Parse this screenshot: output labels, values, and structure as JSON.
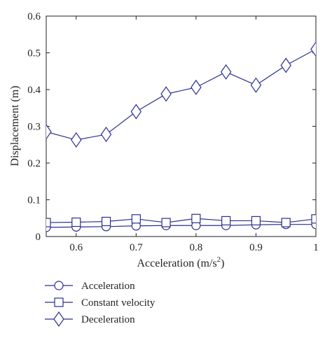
{
  "chart_data": {
    "type": "line",
    "title": "",
    "xlabel": "Acceleration (m/s",
    "xlabel_sup": "2",
    "xlabel_end": ")",
    "ylabel": "Displacement (m)",
    "xlim": [
      0.55,
      1.0
    ],
    "ylim": [
      0,
      0.6
    ],
    "xticks": [
      "0.6",
      "0.7",
      "0.8",
      "0.9",
      "1"
    ],
    "yticks": [
      "0",
      "0.1",
      "0.2",
      "0.3",
      "0.4",
      "0.5",
      "0.6"
    ],
    "grid": false,
    "legend_position": "below",
    "line_color": "#2b2f8f",
    "x": [
      0.55,
      0.6,
      0.65,
      0.7,
      0.75,
      0.8,
      0.85,
      0.9,
      0.95,
      1.0
    ],
    "series": [
      {
        "name": "Acceleration",
        "marker": "circle",
        "values": [
          0.025,
          0.026,
          0.027,
          0.029,
          0.03,
          0.03,
          0.03,
          0.032,
          0.033,
          0.033
        ]
      },
      {
        "name": "Constant velocity",
        "marker": "square",
        "values": [
          0.038,
          0.039,
          0.041,
          0.048,
          0.038,
          0.049,
          0.043,
          0.043,
          0.038,
          0.048
        ]
      },
      {
        "name": "Deceleration",
        "marker": "diamond",
        "values": [
          0.285,
          0.263,
          0.278,
          0.34,
          0.388,
          0.406,
          0.448,
          0.412,
          0.466,
          0.51
        ]
      }
    ]
  }
}
